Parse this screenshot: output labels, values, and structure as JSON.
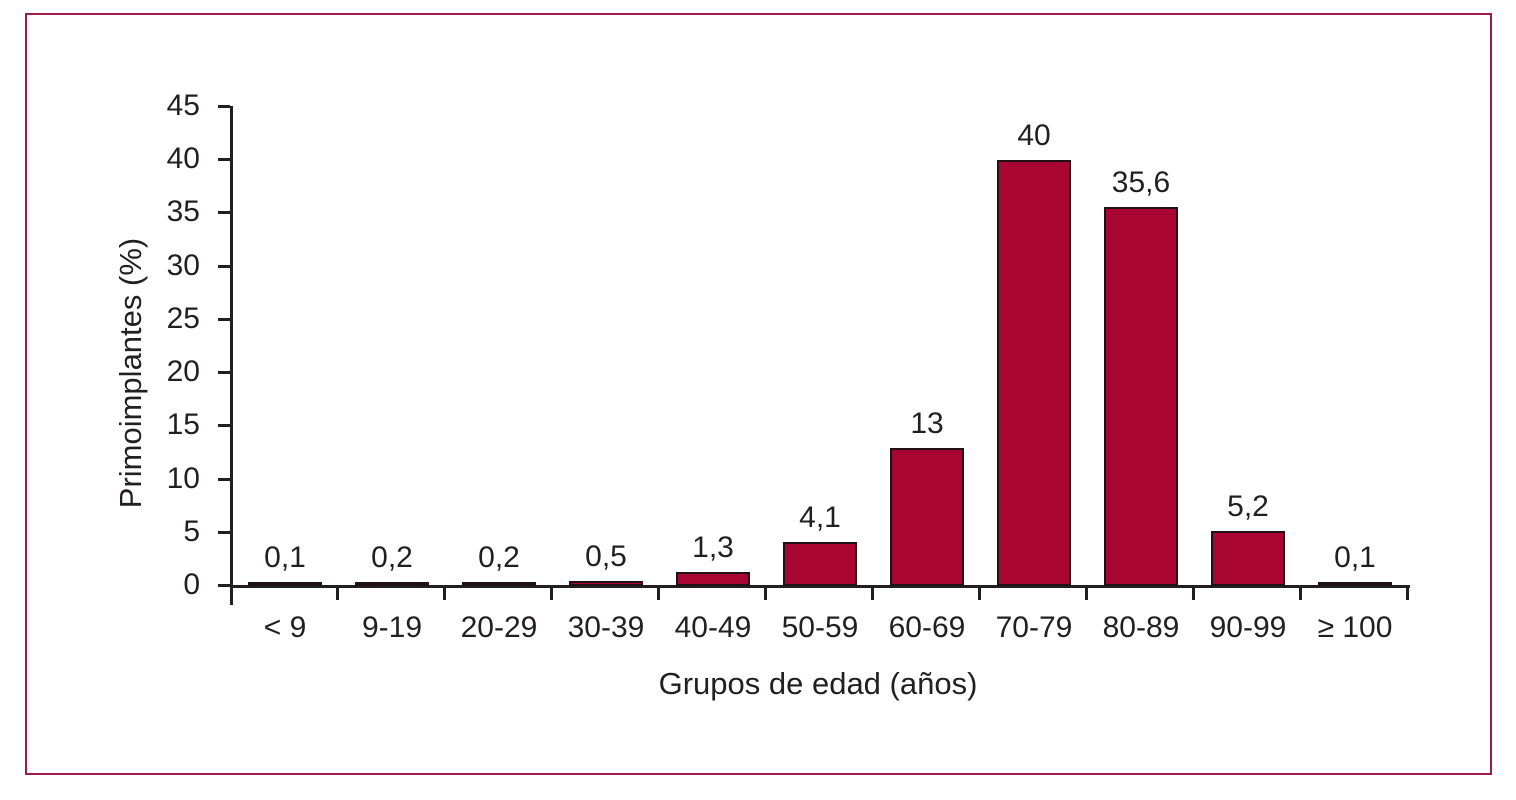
{
  "figure": {
    "background_color": "#ffffff",
    "frame_border_color": "#9a1b4d"
  },
  "chart_data": {
    "type": "bar",
    "title": "",
    "xlabel": "Grupos de edad (años)",
    "ylabel": "Primoimplantes (%)",
    "categories": [
      "< 9",
      "9-19",
      "20-29",
      "30-39",
      "40-49",
      "50-59",
      "60-69",
      "70-79",
      "80-89",
      "90-99",
      "≥ 100"
    ],
    "values": [
      0.1,
      0.2,
      0.2,
      0.5,
      1.3,
      4.1,
      13,
      40,
      35.6,
      5.2,
      0.1
    ],
    "value_labels": [
      "0,1",
      "0,2",
      "0,2",
      "0,5",
      "1,3",
      "4,1",
      "13",
      "40",
      "35,6",
      "5,2",
      "0,1"
    ],
    "ylim": [
      0,
      45
    ],
    "yticks": [
      0,
      5,
      10,
      15,
      20,
      25,
      30,
      35,
      40,
      45
    ],
    "grid": false,
    "legend": false,
    "bar_color": "#a90533",
    "bar_border_color": "#221018",
    "axis_color": "#231f20",
    "text_color": "#231f20"
  }
}
